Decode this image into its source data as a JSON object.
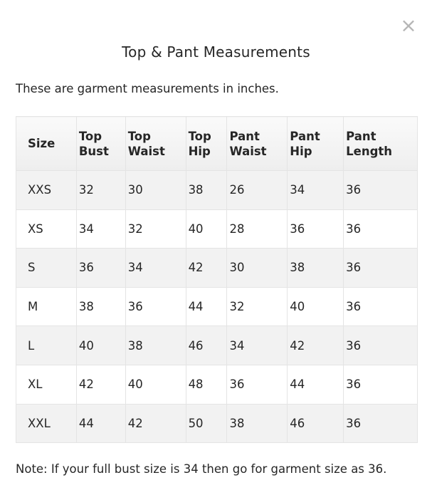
{
  "modal": {
    "close_symbol": "×",
    "close_icon": "close-icon",
    "title": "Top & Pant Measurements",
    "intro": "These are garment measurements in inches.",
    "note": "Note: If your full bust size is 34 then go for garment size as 36."
  },
  "table": {
    "headers": [
      [
        "Size"
      ],
      [
        "Top",
        "Bust"
      ],
      [
        "Top",
        "Waist"
      ],
      [
        "Top",
        "Hip"
      ],
      [
        "Pant",
        "Waist"
      ],
      [
        "Pant",
        "Hip"
      ],
      [
        "Pant",
        "Length"
      ]
    ],
    "rows": [
      [
        "XXS",
        "32",
        "30",
        "38",
        "26",
        "34",
        "36"
      ],
      [
        "XS",
        "34",
        "32",
        "40",
        "28",
        "36",
        "36"
      ],
      [
        "S",
        "36",
        "34",
        "42",
        "30",
        "38",
        "36"
      ],
      [
        "M",
        "38",
        "36",
        "44",
        "32",
        "40",
        "36"
      ],
      [
        "L",
        "40",
        "38",
        "46",
        "34",
        "42",
        "36"
      ],
      [
        "XL",
        "42",
        "40",
        "48",
        "36",
        "44",
        "36"
      ],
      [
        "XXL",
        "44",
        "42",
        "50",
        "38",
        "46",
        "36"
      ]
    ]
  }
}
